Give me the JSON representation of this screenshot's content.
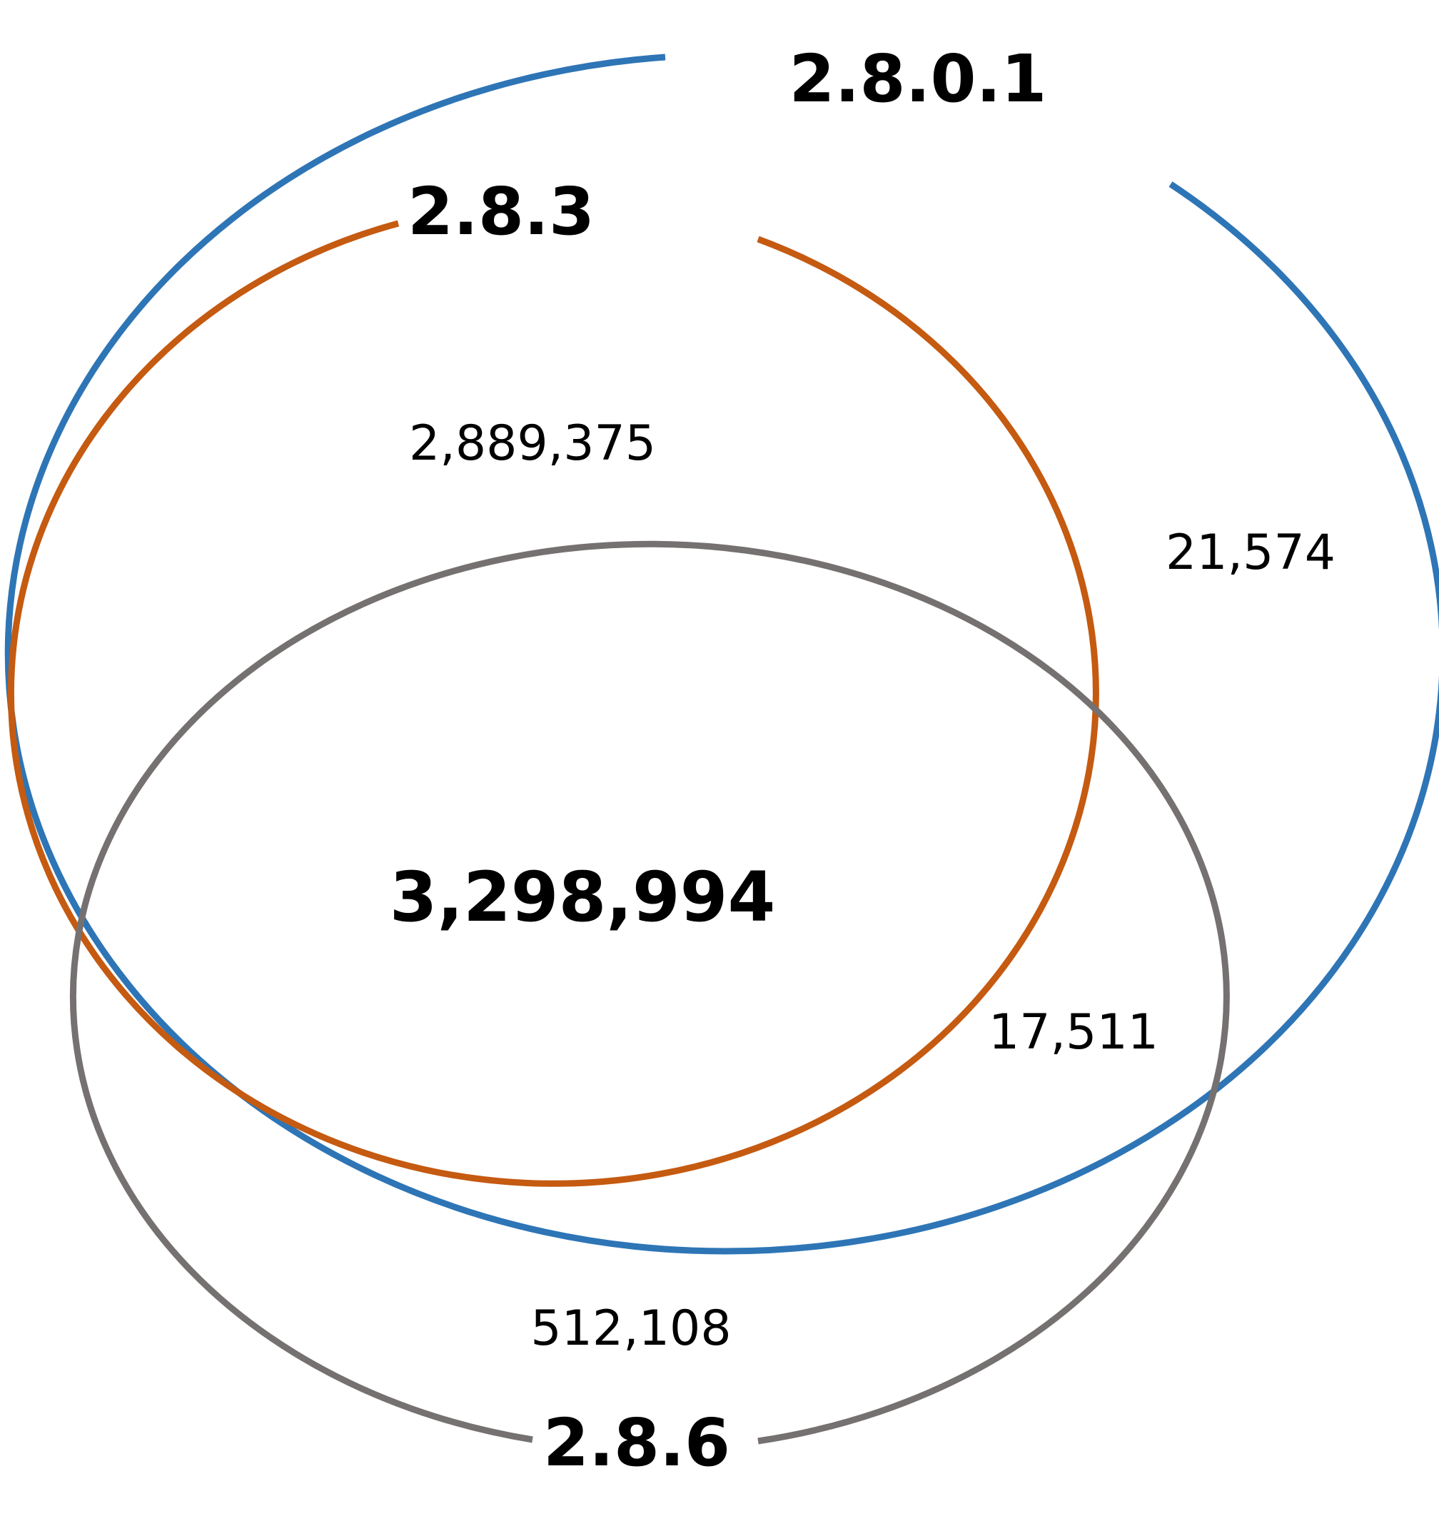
{
  "sets": [
    {
      "id": "s2801",
      "label": "2.8.0.1",
      "color": "#2E75B6"
    },
    {
      "id": "s283",
      "label": "2.8.3",
      "color": "#C55A11"
    },
    {
      "id": "s286",
      "label": "2.8.6",
      "color": "#767171"
    }
  ],
  "regions": [
    {
      "id": "only-2801-283",
      "value": "2,889,375"
    },
    {
      "id": "only-2801",
      "value": "21,574"
    },
    {
      "id": "all-three",
      "value": "3,298,994"
    },
    {
      "id": "only-2801-286",
      "value": "17,511"
    },
    {
      "id": "only-286",
      "value": "512,108"
    }
  ]
}
